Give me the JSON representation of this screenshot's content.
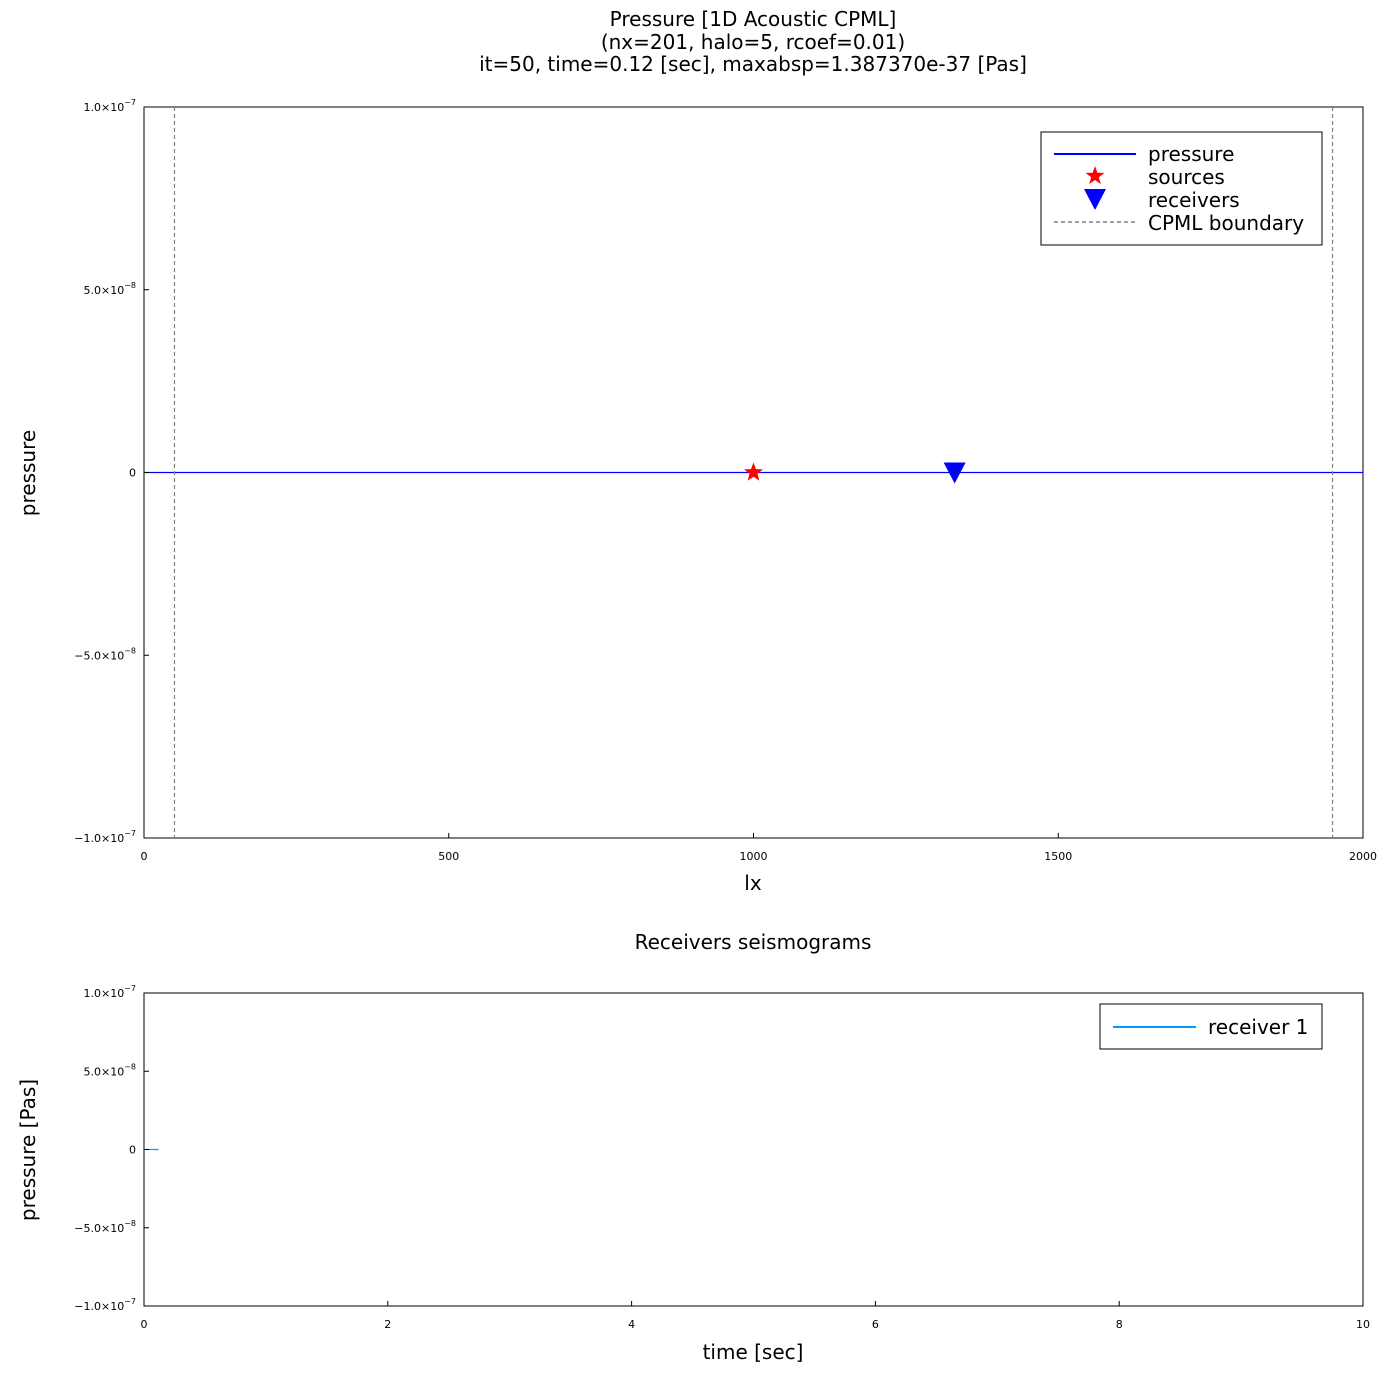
{
  "chart_data": [
    {
      "type": "line",
      "title_lines": [
        "Pressure [1D Acoustic CPML]",
        "(nx=201, halo=5, rcoef=0.01)",
        "it=50, time=0.12 [sec], maxabsp=1.387370e-37 [Pas]"
      ],
      "xlabel": "lx",
      "ylabel": "pressure",
      "xlim": [
        0,
        2000
      ],
      "ylim": [
        -1e-07,
        1e-07
      ],
      "x_ticks": [
        0,
        500,
        1000,
        1500,
        2000
      ],
      "x_tick_labels": [
        "0",
        "500",
        "1000",
        "1500",
        "2000"
      ],
      "y_ticks": [
        1e-07,
        5e-08,
        0,
        -5e-08,
        -1e-07
      ],
      "y_tick_labels": [
        {
          "mant": "1.0×10",
          "exp": "−7"
        },
        {
          "mant": "5.0×10",
          "exp": "−8"
        },
        {
          "mant": "0",
          "exp": ""
        },
        {
          "mant": "−5.0×10",
          "exp": "−8"
        },
        {
          "mant": "−1.0×10",
          "exp": "−7"
        }
      ],
      "grid": false,
      "legend_position": "top-right",
      "series": [
        {
          "name": "pressure",
          "kind": "line",
          "color": "#0000ff",
          "x": [
            0,
            2000
          ],
          "y": [
            0,
            0
          ]
        },
        {
          "name": "sources",
          "kind": "star",
          "color": "#ff0000",
          "x": [
            1000
          ],
          "y": [
            0
          ]
        },
        {
          "name": "receivers",
          "kind": "triangle-down",
          "color": "#0000ff",
          "x": [
            1330
          ],
          "y": [
            0
          ]
        },
        {
          "name": "CPML boundary",
          "kind": "vline-dashed",
          "color": "#808080",
          "x": [
            50,
            1950
          ]
        }
      ]
    },
    {
      "type": "line",
      "title": "Receivers seismograms",
      "xlabel": "time [sec]",
      "ylabel": "pressure [Pas]",
      "xlim": [
        0,
        10
      ],
      "ylim": [
        -1e-07,
        1e-07
      ],
      "x_ticks": [
        0,
        2,
        4,
        6,
        8,
        10
      ],
      "x_tick_labels": [
        "0",
        "2",
        "4",
        "6",
        "8",
        "10"
      ],
      "y_ticks": [
        1e-07,
        5e-08,
        0,
        -5e-08,
        -1e-07
      ],
      "y_tick_labels": [
        {
          "mant": "1.0×10",
          "exp": "−7"
        },
        {
          "mant": "5.0×10",
          "exp": "−8"
        },
        {
          "mant": "0",
          "exp": ""
        },
        {
          "mant": "−5.0×10",
          "exp": "−8"
        },
        {
          "mant": "−1.0×10",
          "exp": "−7"
        }
      ],
      "grid": false,
      "legend_position": "top-right",
      "series": [
        {
          "name": "receiver 1",
          "kind": "line",
          "color": "#009af9",
          "x": [
            0,
            0.12
          ],
          "y": [
            0,
            0
          ]
        }
      ]
    }
  ]
}
